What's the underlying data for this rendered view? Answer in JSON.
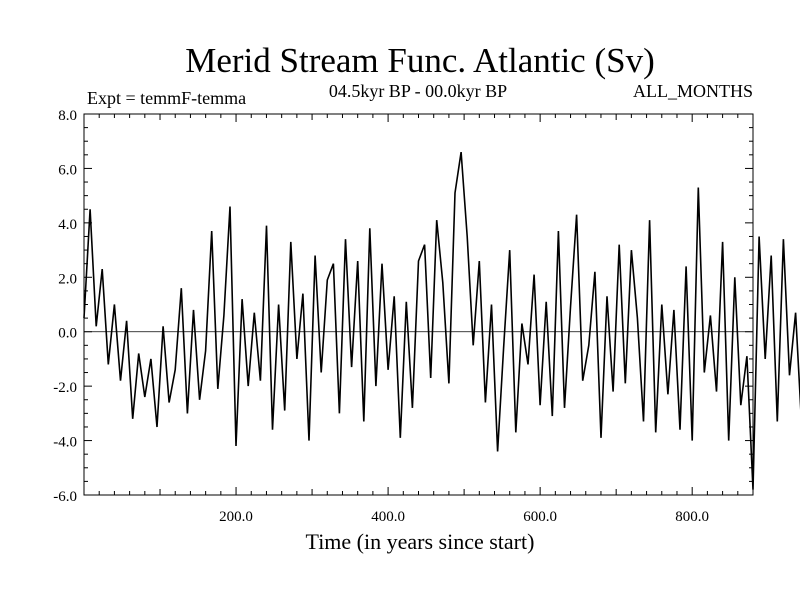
{
  "chart_data": {
    "type": "line",
    "title": "Merid Stream Func. Atlantic (Sv)",
    "subtitle_left": "Expt = temmF-temma",
    "subtitle_center": "04.5kyr BP - 00.0kyr BP",
    "subtitle_right": "ALL_MONTHS",
    "xlabel": "Time (in years since start)",
    "ylabel": "",
    "xlim": [
      0,
      880
    ],
    "ylim": [
      -6.0,
      8.0
    ],
    "x_ticks": [
      200,
      400,
      600,
      800
    ],
    "x_tick_labels": [
      "200.0",
      "400.0",
      "600.0",
      "800.0"
    ],
    "y_ticks": [
      -6,
      -4,
      -2,
      0,
      2,
      4,
      6,
      8
    ],
    "y_tick_labels": [
      "-6.0",
      "-4.0",
      "-2.0",
      "0.0",
      "2.0",
      "4.0",
      "6.0",
      "8.0"
    ],
    "zero_line": true,
    "grid": false,
    "legend": "none",
    "series": [
      {
        "name": "Merid Stream Func. Atlantic anomaly",
        "x_start": 0,
        "x_step": 8,
        "values": [
          0.5,
          4.5,
          0.2,
          2.3,
          -1.2,
          1.0,
          -1.8,
          0.4,
          -3.2,
          -0.8,
          -2.4,
          -1.0,
          -3.5,
          0.2,
          -2.6,
          -1.4,
          1.6,
          -3.0,
          0.8,
          -2.5,
          -0.7,
          3.7,
          -2.1,
          0.6,
          4.6,
          -4.2,
          1.2,
          -2.0,
          0.7,
          -1.8,
          3.9,
          -3.6,
          1.0,
          -2.9,
          3.3,
          -1.0,
          1.4,
          -4.0,
          2.8,
          -1.5,
          1.9,
          2.5,
          -3.0,
          3.4,
          -1.3,
          2.6,
          -3.3,
          3.8,
          -2.0,
          2.5,
          -1.4,
          1.3,
          -3.9,
          1.1,
          -2.8,
          2.6,
          3.2,
          -1.7,
          4.1,
          1.8,
          -1.9,
          5.1,
          6.6,
          3.5,
          -0.5,
          2.6,
          -2.6,
          1.0,
          -4.4,
          -0.6,
          3.0,
          -3.7,
          0.3,
          -1.2,
          2.1,
          -2.7,
          1.1,
          -3.1,
          3.7,
          -2.8,
          0.9,
          4.3,
          -1.8,
          -0.5,
          2.2,
          -3.9,
          1.3,
          -2.2,
          3.2,
          -1.9,
          3.0,
          0.5,
          -3.3,
          4.1,
          -3.7,
          1.0,
          -2.3,
          0.8,
          -3.6,
          2.4,
          -4.0,
          5.3,
          -1.5,
          0.6,
          -2.2,
          3.3,
          -4.0,
          2.0,
          -2.7,
          -0.9,
          -5.8,
          3.5,
          -1.0,
          2.8,
          -3.3,
          3.4,
          -1.6,
          0.7,
          -3.5,
          2.3,
          -2.5,
          -0.9,
          3.5,
          -4.5,
          -0.8
        ]
      }
    ]
  }
}
